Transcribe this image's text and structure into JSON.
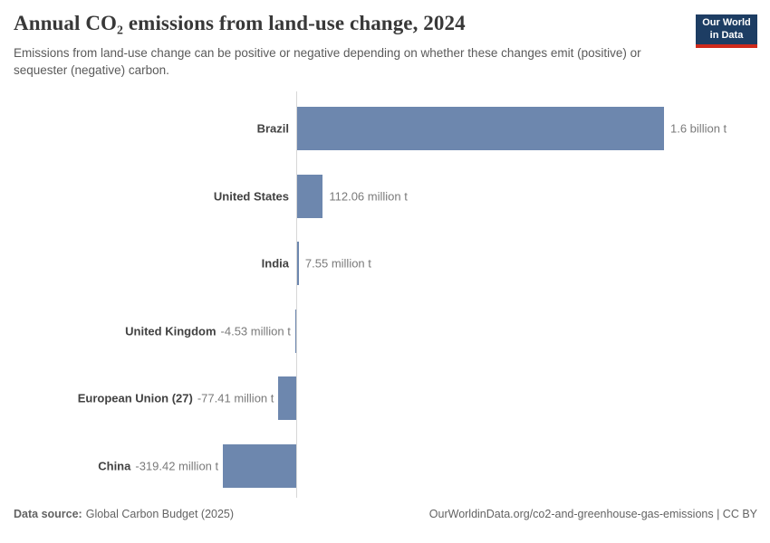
{
  "header": {
    "title": "Annual CO₂ emissions from land-use change, 2024",
    "subtitle": "Emissions from land-use change can be positive or negative depending on whether these changes emit (positive) or sequester (negative) carbon.",
    "logo": {
      "line1": "Our World",
      "line2": "in Data"
    }
  },
  "chart_data": {
    "type": "bar",
    "orientation": "horizontal",
    "title": "Annual CO₂ emissions from land-use change, 2024",
    "unit": "t CO₂",
    "categories": [
      "Brazil",
      "United States",
      "India",
      "United Kingdom",
      "European Union (27)",
      "China"
    ],
    "values_million_t": [
      1600,
      112.06,
      7.55,
      -4.53,
      -77.41,
      -319.42
    ],
    "value_labels": [
      "1.6 billion t",
      "112.06 million t",
      "7.55 million t",
      "-4.53 million t",
      "-77.41 million t",
      "-319.42 million t"
    ],
    "xlim_million_t": [
      -400,
      1700
    ],
    "zero_line": true,
    "grid": false,
    "legend": "none"
  },
  "colors": {
    "bar": "#6d87ae",
    "axis_line": "#d7d7d7",
    "logo_bg": "#1d3d63",
    "logo_accent": "#cf2a1b"
  },
  "footer": {
    "datasource_label": "Data source:",
    "datasource_value": "Global Carbon Budget (2025)",
    "license": "OurWorldinData.org/co2-and-greenhouse-gas-emissions | CC BY"
  }
}
